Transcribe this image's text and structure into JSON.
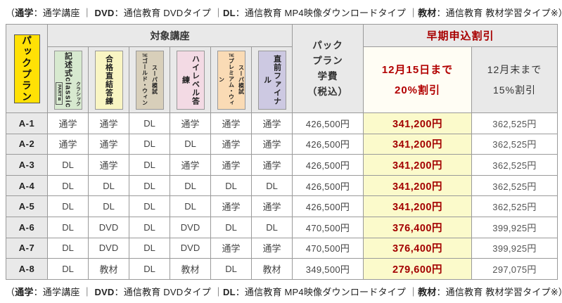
{
  "legend": {
    "parts": [
      {
        "text": "（",
        "bold": false
      },
      {
        "text": "通学",
        "bold": true
      },
      {
        "text": "：通学講座 ｜ ",
        "bold": false
      },
      {
        "text": "DVD",
        "bold": true
      },
      {
        "text": "：通信教育 DVDタイプ ｜",
        "bold": false
      },
      {
        "text": "DL",
        "bold": true
      },
      {
        "text": "：通信教育 MP4映像ダウンロードタイプ ｜",
        "bold": false
      },
      {
        "text": "教材",
        "bold": true
      },
      {
        "text": "：通信教育 教材学習タイプ※）",
        "bold": false
      }
    ]
  },
  "header": {
    "pack_plan": "パックプラン",
    "target_courses": "対象講座",
    "fee_lines": [
      "パック",
      "プラン",
      "学費",
      "（税込）"
    ],
    "early_discount": "早期申込割引",
    "discount20_line1": "12月15日まで",
    "discount20_line2": "20%割引",
    "discount15_line1": "12月末まで",
    "discount15_line2": "15%割引"
  },
  "courses": [
    {
      "name": "記述式classic",
      "furigana": "クラシック",
      "badge": "PARTⅡ",
      "bg": "#d7e9cf"
    },
    {
      "name": "合格直結答練",
      "bg": "#f9f5c3"
    },
    {
      "lines": [
        "スーパ模試",
        "ゴールド・ウィン"
      ],
      "prefix": "THE",
      "bg": "#d8cfba"
    },
    {
      "name": "ハイレベル答練",
      "bg": "#f3dae4"
    },
    {
      "lines": [
        "スーパ模試",
        "プレミアム・ウィン"
      ],
      "prefix": "THE",
      "bg": "#fadbb5"
    },
    {
      "name": "直前ファイナル",
      "bg": "#cdc9e2"
    }
  ],
  "rows": [
    {
      "id": "A-1",
      "cells": [
        "通学",
        "通学",
        "DL",
        "通学",
        "通学",
        "通学"
      ],
      "fee": "426,500円",
      "disc20": "341,200円",
      "disc15": "362,525円"
    },
    {
      "id": "A-2",
      "cells": [
        "通学",
        "通学",
        "DL",
        "DL",
        "通学",
        "通学"
      ],
      "fee": "426,500円",
      "disc20": "341,200円",
      "disc15": "362,525円"
    },
    {
      "id": "A-3",
      "cells": [
        "DL",
        "通学",
        "DL",
        "通学",
        "通学",
        "通学"
      ],
      "fee": "426,500円",
      "disc20": "341,200円",
      "disc15": "362,525円"
    },
    {
      "id": "A-4",
      "cells": [
        "DL",
        "DL",
        "DL",
        "DL",
        "DL",
        "DL"
      ],
      "fee": "426,500円",
      "disc20": "341,200円",
      "disc15": "362,525円"
    },
    {
      "id": "A-5",
      "cells": [
        "DL",
        "DL",
        "DL",
        "DL",
        "通学",
        "通学"
      ],
      "fee": "426,500円",
      "disc20": "341,200円",
      "disc15": "362,525円"
    },
    {
      "id": "A-6",
      "cells": [
        "DL",
        "DVD",
        "DL",
        "DVD",
        "DL",
        "DL"
      ],
      "fee": "470,500円",
      "disc20": "376,400円",
      "disc15": "399,925円"
    },
    {
      "id": "A-7",
      "cells": [
        "DL",
        "DVD",
        "DL",
        "DVD",
        "通学",
        "通学"
      ],
      "fee": "470,500円",
      "disc20": "376,400円",
      "disc15": "399,925円"
    },
    {
      "id": "A-8",
      "cells": [
        "DL",
        "教材",
        "DL",
        "教材",
        "DL",
        "教材"
      ],
      "fee": "349,500円",
      "disc20": "279,600円",
      "disc15": "297,075円"
    }
  ],
  "colors": {
    "discount_red": "#aa0000",
    "highlight_yellow": "#fbfacb",
    "pack_badge_yellow": "#ffe105",
    "header_gray": "#e9e9e9",
    "grid_line": "#9a9a9a"
  }
}
